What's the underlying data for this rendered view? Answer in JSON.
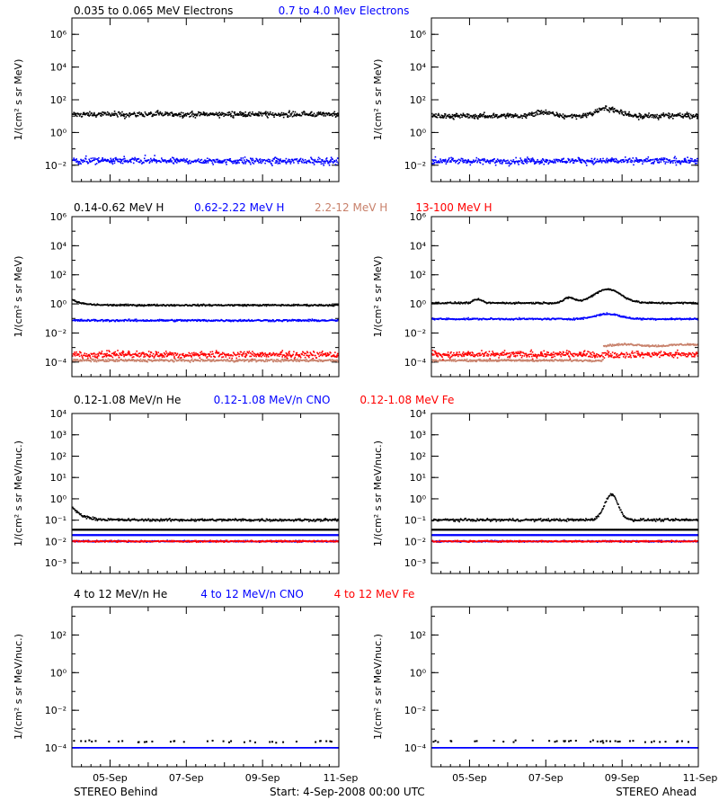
{
  "colors": {
    "black": "#000000",
    "blue": "#0000ff",
    "tan": "#c8806a",
    "red": "#ff0000"
  },
  "legends": {
    "electrons": [
      {
        "label": "0.035 to 0.065 MeV Electrons",
        "color": "#000000"
      },
      {
        "label": "0.7 to 4.0 Mev Electrons",
        "color": "#0000ff"
      }
    ],
    "protons": [
      {
        "label": "0.14-0.62 MeV H",
        "color": "#000000"
      },
      {
        "label": "0.62-2.22 MeV H",
        "color": "#0000ff"
      },
      {
        "label": "2.2-12 MeV H",
        "color": "#c8806a"
      },
      {
        "label": "13-100 MeV H",
        "color": "#ff0000"
      }
    ],
    "ions_low": [
      {
        "label": "0.12-1.08 MeV/n He",
        "color": "#000000"
      },
      {
        "label": "0.12-1.08 MeV/n CNO",
        "color": "#0000ff"
      },
      {
        "label": "0.12-1.08 MeV Fe",
        "color": "#ff0000"
      }
    ],
    "ions_high": [
      {
        "label": "4 to 12 MeV/n He",
        "color": "#000000"
      },
      {
        "label": "4 to 12 MeV/n CNO",
        "color": "#0000ff"
      },
      {
        "label": "4 to 12 MeV Fe",
        "color": "#ff0000"
      }
    ]
  },
  "footer": {
    "left": "STEREO Behind",
    "center": "Start:  4-Sep-2008 00:00 UTC",
    "right": "STEREO Ahead"
  },
  "x_tick_labels": [
    "05-Sep",
    "07-Sep",
    "09-Sep",
    "11-Sep"
  ],
  "chart_data": [
    {
      "type": "scatter",
      "panel": "electrons-behind",
      "scale": "log",
      "ylabel": "1/(cm² s sr MeV)",
      "xlim": [
        "2008-09-04",
        "2008-09-11"
      ],
      "ylim_exp": [
        -3,
        7
      ],
      "yticks": [
        "10⁻²",
        "10⁰",
        "10²",
        "10⁴",
        "10⁶"
      ],
      "series": [
        {
          "name": "0.035 to 0.065 MeV Electrons",
          "color": "#000000",
          "level_exp": 1.1,
          "noise": 0.12
        },
        {
          "name": "0.7 to 4.0 Mev Electrons",
          "color": "#0000ff",
          "level_exp": -1.75,
          "noise": 0.15
        }
      ]
    },
    {
      "type": "scatter",
      "panel": "electrons-ahead",
      "scale": "log",
      "ylabel": "1/(cm² s sr MeV)",
      "xlim": [
        "2008-09-04",
        "2008-09-11"
      ],
      "ylim_exp": [
        -3,
        7
      ],
      "yticks": [
        "10⁻²",
        "10⁰",
        "10²",
        "10⁴",
        "10⁶"
      ],
      "series": [
        {
          "name": "0.035 to 0.065 MeV Electrons",
          "color": "#000000",
          "level_exp": 1.0,
          "noise": 0.12,
          "bumps": [
            [
              2.9,
              0.25,
              0.3
            ],
            [
              4.6,
              0.45,
              0.4
            ]
          ]
        },
        {
          "name": "0.7 to 4.0 Mev Electrons",
          "color": "#0000ff",
          "level_exp": -1.75,
          "noise": 0.15
        }
      ]
    },
    {
      "type": "scatter",
      "panel": "protons-behind",
      "scale": "log",
      "ylabel": "1/(cm² s sr MeV)",
      "xlim": [
        "2008-09-04",
        "2008-09-11"
      ],
      "ylim_exp": [
        -5,
        6
      ],
      "yticks": [
        "10⁻⁴",
        "10⁻²",
        "10⁰",
        "10²",
        "10⁴",
        "10⁶"
      ],
      "series": [
        {
          "name": "0.14-0.62 MeV H",
          "color": "#000000",
          "level_exp": -0.1,
          "noise": 0.05,
          "start_boost": 0.35
        },
        {
          "name": "0.62-2.22 MeV H",
          "color": "#0000ff",
          "level_exp": -1.15,
          "noise": 0.06
        },
        {
          "name": "13-100 MeV H",
          "color": "#ff0000",
          "level_exp": -3.5,
          "noise": 0.18
        },
        {
          "name": "2.2-12 MeV H",
          "color": "#c8806a",
          "level_exp": -3.9,
          "noise": 0.08
        }
      ]
    },
    {
      "type": "scatter",
      "panel": "protons-ahead",
      "scale": "log",
      "ylabel": "1/(cm² s sr MeV)",
      "xlim": [
        "2008-09-04",
        "2008-09-11"
      ],
      "ylim_exp": [
        -5,
        6
      ],
      "yticks": [
        "10⁻⁴",
        "10⁻²",
        "10⁰",
        "10²",
        "10⁴",
        "10⁶"
      ],
      "series": [
        {
          "name": "0.14-0.62 MeV H",
          "color": "#000000",
          "level_exp": 0.05,
          "noise": 0.05,
          "bumps": [
            [
              1.2,
              0.25,
              0.15
            ],
            [
              4.6,
              0.95,
              0.5
            ],
            [
              3.6,
              0.35,
              0.2
            ]
          ]
        },
        {
          "name": "0.62-2.22 MeV H",
          "color": "#0000ff",
          "level_exp": -1.05,
          "noise": 0.05,
          "bumps": [
            [
              4.6,
              0.35,
              0.45
            ]
          ]
        },
        {
          "name": "2.2-12 MeV H",
          "color": "#c8806a",
          "level_exp": -3.9,
          "noise": 0.06,
          "step_from": 4.5,
          "step_to": -2.85
        },
        {
          "name": "13-100 MeV H",
          "color": "#ff0000",
          "level_exp": -3.5,
          "noise": 0.18
        }
      ]
    },
    {
      "type": "scatter",
      "panel": "ions-low-behind",
      "scale": "log",
      "ylabel": "1/(cm² s sr MeV/nuc.)",
      "xlim": [
        "2008-09-04",
        "2008-09-11"
      ],
      "ylim_exp": [
        -3.5,
        4
      ],
      "yticks": [
        "10⁻³",
        "10⁻²",
        "10⁻¹",
        "10⁰",
        "10¹",
        "10²",
        "10³",
        "10⁴"
      ],
      "series": [
        {
          "name": "0.12-1.08 MeV/n He",
          "color": "#000000",
          "level_exp": -1.0,
          "noise": 0.05,
          "floor_exp": -1.45,
          "start_boost": 0.6
        },
        {
          "name": "0.12-1.08 MeV/n CNO",
          "color": "#0000ff",
          "level_exp": -2.0,
          "noise": 0.03,
          "floor_exp": -1.7
        },
        {
          "name": "0.12-1.08 MeV Fe",
          "color": "#ff0000",
          "level_exp": -2.0,
          "noise": 0.03
        }
      ]
    },
    {
      "type": "scatter",
      "panel": "ions-low-ahead",
      "scale": "log",
      "ylabel": "1/(cm² s sr MeV/nuc.)",
      "xlim": [
        "2008-09-04",
        "2008-09-11"
      ],
      "ylim_exp": [
        -3.5,
        4
      ],
      "yticks": [
        "10⁻³",
        "10⁻²",
        "10⁻¹",
        "10⁰",
        "10¹",
        "10²",
        "10³",
        "10⁴"
      ],
      "series": [
        {
          "name": "0.12-1.08 MeV/n He",
          "color": "#000000",
          "level_exp": -1.0,
          "noise": 0.05,
          "floor_exp": -1.45,
          "bumps": [
            [
              4.7,
              1.2,
              0.25
            ]
          ]
        },
        {
          "name": "0.12-1.08 MeV/n CNO",
          "color": "#0000ff",
          "level_exp": -2.0,
          "noise": 0.03,
          "floor_exp": -1.7
        },
        {
          "name": "0.12-1.08 MeV Fe",
          "color": "#ff0000",
          "level_exp": -2.0,
          "noise": 0.03
        }
      ]
    },
    {
      "type": "scatter",
      "panel": "ions-high-behind",
      "scale": "log",
      "ylabel": "1/(cm² s sr MeV/nuc.)",
      "xlim": [
        "2008-09-04",
        "2008-09-11"
      ],
      "ylim_exp": [
        -5,
        3.5
      ],
      "yticks": [
        "10⁻⁴",
        "10⁻²",
        "10⁰",
        "10²"
      ],
      "series": [
        {
          "name": "4 to 12 MeV/n He",
          "color": "#000000",
          "level_exp": -3.65,
          "noise": 0.05,
          "sparse": true
        },
        {
          "name": "4 to 12 MeV/n CNO",
          "color": "#0000ff",
          "level_exp": -4.0,
          "noise": 0.0
        }
      ]
    },
    {
      "type": "scatter",
      "panel": "ions-high-ahead",
      "scale": "log",
      "ylabel": "1/(cm² s sr MeV/nuc.)",
      "xlim": [
        "2008-09-04",
        "2008-09-11"
      ],
      "ylim_exp": [
        -5,
        3.5
      ],
      "yticks": [
        "10⁻⁴",
        "10⁻²",
        "10⁰",
        "10²"
      ],
      "series": [
        {
          "name": "4 to 12 MeV/n He",
          "color": "#000000",
          "level_exp": -3.65,
          "noise": 0.05,
          "sparse": true
        },
        {
          "name": "4 to 12 MeV/n CNO",
          "color": "#0000ff",
          "level_exp": -4.0,
          "noise": 0.0
        }
      ]
    }
  ]
}
